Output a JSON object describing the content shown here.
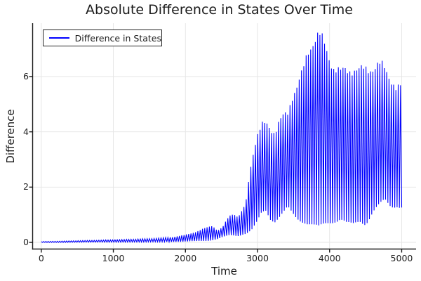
{
  "title": "Absolute Difference in States Over Time",
  "legend": {
    "label": "Difference in States"
  },
  "colors": {
    "line": "#0000ff",
    "grid": "#e6e6e6",
    "axis": "#1a1a1a",
    "text": "#1c1c1c",
    "background": "#ffffff"
  },
  "chart_data": {
    "type": "line",
    "title": "Absolute Difference in States Over Time",
    "xlabel": "Time",
    "ylabel": "Difference",
    "series_name": "Difference in States",
    "line_color": "#0000ff",
    "grid": true,
    "legend_position": "top-left",
    "x_ticks": [
      0,
      1000,
      2000,
      3000,
      4000,
      5000
    ],
    "y_ticks": [
      0,
      2,
      4,
      6
    ],
    "xlim": [
      -120,
      5200
    ],
    "ylim": [
      -0.24,
      7.93
    ],
    "x_max": 5000,
    "oscillation_points": 313,
    "description": "Rapidly oscillating absolute difference between two trajectories; envelope [t, min, max] sampled from the plot.",
    "envelope": [
      [
        0,
        0.0,
        0.03
      ],
      [
        300,
        0.0,
        0.05
      ],
      [
        600,
        0.01,
        0.07
      ],
      [
        900,
        0.01,
        0.09
      ],
      [
        1200,
        0.01,
        0.11
      ],
      [
        1500,
        0.02,
        0.14
      ],
      [
        1800,
        0.02,
        0.19
      ],
      [
        2000,
        0.03,
        0.28
      ],
      [
        2150,
        0.05,
        0.4
      ],
      [
        2300,
        0.06,
        0.56
      ],
      [
        2370,
        0.08,
        0.63
      ],
      [
        2450,
        0.12,
        0.44
      ],
      [
        2520,
        0.18,
        0.58
      ],
      [
        2600,
        0.25,
        0.97
      ],
      [
        2660,
        0.27,
        1.09
      ],
      [
        2730,
        0.26,
        0.95
      ],
      [
        2790,
        0.3,
        1.17
      ],
      [
        2840,
        0.32,
        1.5
      ],
      [
        2880,
        0.36,
        2.4
      ],
      [
        2920,
        0.42,
        3.1
      ],
      [
        2960,
        0.56,
        3.65
      ],
      [
        3000,
        0.72,
        4.0
      ],
      [
        3060,
        1.1,
        4.35
      ],
      [
        3120,
        1.25,
        4.45
      ],
      [
        3180,
        0.92,
        4.28
      ],
      [
        3240,
        0.78,
        4.12
      ],
      [
        3300,
        0.88,
        4.5
      ],
      [
        3360,
        1.0,
        4.7
      ],
      [
        3420,
        1.18,
        4.85
      ],
      [
        3480,
        1.05,
        5.5
      ],
      [
        3550,
        0.92,
        5.85
      ],
      [
        3620,
        0.82,
        6.3
      ],
      [
        3700,
        0.68,
        7.15
      ],
      [
        3780,
        0.6,
        7.6
      ],
      [
        3850,
        0.55,
        7.78
      ],
      [
        3920,
        0.66,
        7.45
      ],
      [
        3990,
        0.75,
        6.95
      ],
      [
        4060,
        0.8,
        6.55
      ],
      [
        4150,
        0.85,
        6.35
      ],
      [
        4230,
        0.68,
        6.45
      ],
      [
        4320,
        0.63,
        6.5
      ],
      [
        4420,
        0.8,
        6.4
      ],
      [
        4500,
        0.7,
        6.5
      ],
      [
        4600,
        1.1,
        6.55
      ],
      [
        4700,
        1.28,
        6.62
      ],
      [
        4770,
        1.45,
        6.5
      ],
      [
        4850,
        1.35,
        6.15
      ],
      [
        4930,
        1.45,
        5.72
      ],
      [
        5000,
        1.35,
        5.8
      ]
    ]
  }
}
